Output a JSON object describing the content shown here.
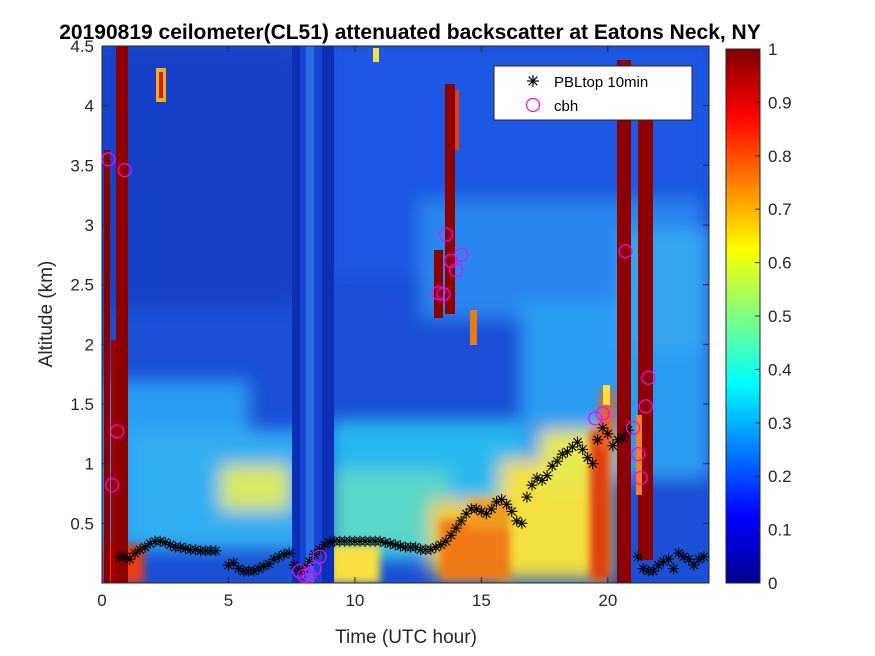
{
  "chart_data": {
    "type": "heatmap",
    "title": "20190819 ceilometer(CL51) attenuated backscatter at Eatons Neck, NY",
    "xlabel": "Time (UTC hour)",
    "ylabel": "Altitude (km)",
    "xlim": [
      0,
      24
    ],
    "ylim": [
      0,
      4.5
    ],
    "x_ticks": [
      0,
      5,
      10,
      15,
      20
    ],
    "y_ticks": [
      0.5,
      1,
      1.5,
      2,
      2.5,
      3,
      3.5,
      4,
      4.5
    ],
    "x_tick_labels": [
      "0",
      "5",
      "10",
      "15",
      "20"
    ],
    "y_tick_labels": [
      "0.5",
      "1",
      "1.5",
      "2",
      "2.5",
      "3",
      "3.5",
      "4",
      "4.5"
    ],
    "colorbar": {
      "colormap": "jet",
      "range": [
        0,
        1
      ],
      "ticks": [
        0,
        0.1,
        0.2,
        0.3,
        0.4,
        0.5,
        0.6,
        0.7,
        0.8,
        0.9,
        1
      ],
      "tick_labels": [
        "0",
        "0.1",
        "0.2",
        "0.3",
        "0.4",
        "0.5",
        "0.6",
        "0.7",
        "0.8",
        "0.9",
        "1"
      ]
    },
    "legend": {
      "placement": "top-right",
      "entries": [
        {
          "label": "PBLtop 10min",
          "marker": "asterisk",
          "color": "#000000"
        },
        {
          "label": "cbh",
          "marker": "circle",
          "color": "#ff00ff"
        }
      ]
    },
    "series": [
      {
        "name": "PBLtop 10min",
        "x": [
          0.7,
          0.9,
          1.1,
          1.3,
          1.5,
          1.7,
          1.9,
          2.1,
          2.3,
          2.5,
          2.7,
          2.9,
          3.1,
          3.3,
          3.5,
          3.7,
          3.9,
          4.1,
          4.3,
          4.5,
          5.0,
          5.2,
          5.4,
          5.6,
          5.8,
          6.0,
          6.2,
          6.4,
          6.6,
          6.8,
          7.0,
          7.2,
          7.4,
          7.6,
          7.8,
          8.0,
          8.2,
          8.4,
          8.6,
          8.8,
          9.0,
          9.2,
          9.4,
          9.6,
          9.8,
          10.0,
          10.2,
          10.4,
          10.6,
          10.8,
          11.0,
          11.2,
          11.4,
          11.6,
          11.8,
          12.0,
          12.2,
          12.4,
          12.6,
          12.8,
          13.0,
          13.2,
          13.4,
          13.6,
          13.8,
          14.0,
          14.2,
          14.4,
          14.6,
          14.8,
          15.0,
          15.2,
          15.4,
          15.6,
          15.8,
          16.0,
          16.2,
          16.4,
          16.6,
          16.8,
          17.0,
          17.2,
          17.4,
          17.6,
          17.8,
          18.0,
          18.2,
          18.4,
          18.6,
          18.8,
          19.0,
          19.2,
          19.4,
          19.6,
          19.8,
          20.0,
          20.2,
          20.4,
          20.6,
          20.8,
          21.2,
          21.4,
          21.6,
          21.8,
          22.0,
          22.2,
          22.4,
          22.6,
          22.8,
          23.0,
          23.2,
          23.4,
          23.6,
          23.8
        ],
        "y": [
          0.22,
          0.22,
          0.2,
          0.25,
          0.28,
          0.3,
          0.33,
          0.35,
          0.35,
          0.34,
          0.32,
          0.3,
          0.3,
          0.29,
          0.28,
          0.28,
          0.27,
          0.27,
          0.27,
          0.27,
          0.15,
          0.17,
          0.12,
          0.1,
          0.1,
          0.1,
          0.12,
          0.14,
          0.16,
          0.2,
          0.22,
          0.24,
          0.25,
          0.15,
          0.1,
          0.12,
          0.18,
          0.24,
          0.28,
          0.32,
          0.34,
          0.35,
          0.35,
          0.35,
          0.35,
          0.35,
          0.35,
          0.35,
          0.35,
          0.35,
          0.35,
          0.34,
          0.33,
          0.32,
          0.31,
          0.3,
          0.3,
          0.3,
          0.28,
          0.28,
          0.28,
          0.3,
          0.32,
          0.35,
          0.4,
          0.46,
          0.52,
          0.58,
          0.62,
          0.62,
          0.6,
          0.58,
          0.62,
          0.68,
          0.7,
          0.66,
          0.6,
          0.52,
          0.5,
          0.72,
          0.82,
          0.88,
          0.86,
          0.9,
          0.98,
          1.02,
          1.08,
          1.1,
          1.14,
          1.18,
          1.12,
          1.05,
          1.0,
          1.2,
          1.3,
          1.25,
          1.15,
          1.2,
          1.22,
          1.28,
          0.22,
          0.12,
          0.1,
          0.1,
          0.15,
          0.18,
          0.2,
          0.12,
          0.25,
          0.22,
          0.2,
          0.15,
          0.2,
          0.22
        ]
      },
      {
        "name": "cbh",
        "x": [
          0.25,
          0.6,
          0.9,
          0.4,
          8.0,
          8.2,
          8.4,
          8.6,
          7.8,
          13.3,
          13.5,
          13.6,
          13.8,
          14.0,
          14.2,
          19.5,
          19.8,
          20.7,
          21.0,
          21.2,
          21.3,
          21.5,
          21.6
        ],
        "y": [
          3.55,
          1.27,
          3.46,
          0.82,
          0.06,
          0.07,
          0.12,
          0.22,
          0.1,
          2.43,
          2.42,
          2.92,
          2.7,
          2.62,
          2.75,
          1.38,
          1.42,
          2.78,
          1.3,
          1.08,
          0.88,
          1.48,
          1.72
        ]
      }
    ]
  }
}
